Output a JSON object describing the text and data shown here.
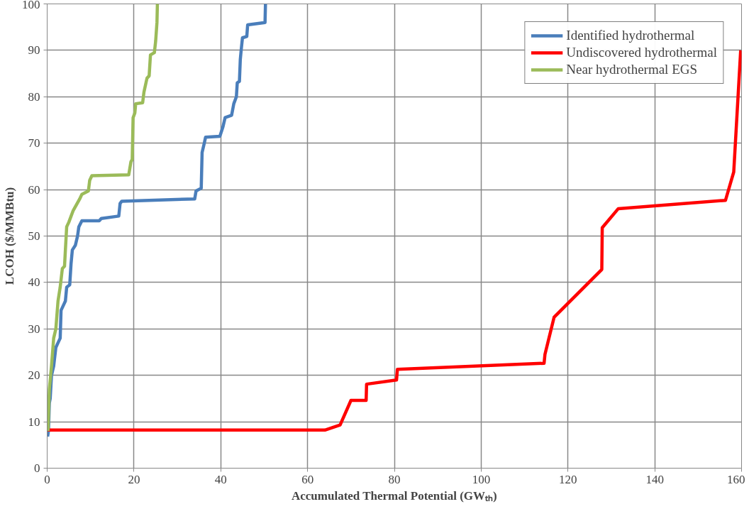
{
  "chart_data": {
    "type": "line",
    "xlabel": "Accumulated Thermal Potential (GWₜₕ)",
    "ylabel": "LCOH ($/MMBtu)",
    "xlim": [
      0,
      160
    ],
    "xticks": [
      0,
      20,
      40,
      60,
      80,
      100,
      120,
      140,
      160
    ],
    "ylim": [
      0,
      100
    ],
    "yticks": [
      0,
      10,
      20,
      30,
      40,
      50,
      60,
      70,
      80,
      90,
      100
    ],
    "grid": true,
    "legend": "top right",
    "marker": "none",
    "line_style": "solid",
    "series": [
      {
        "name": "Identified hydrothermal",
        "color": "#4a7ebb",
        "x": [
          0.1,
          0.3,
          0.5,
          0.7,
          1,
          1.5,
          2,
          2.5,
          3,
          3.2,
          3.7,
          4.2,
          4.5,
          5.2,
          5.5,
          5.8,
          6.5,
          7,
          7.3,
          8,
          12,
          12.5,
          16.5,
          16.8,
          17.2,
          34,
          34.3,
          35.5,
          35.7,
          36.2,
          36.5,
          39.8,
          40.5,
          41,
          42.5,
          43,
          43.6,
          43.8,
          44.3,
          44.5,
          44.7,
          45,
          46,
          46.2,
          50.2,
          50.3
        ],
        "values": [
          6.8,
          8,
          14,
          15,
          20,
          22,
          26,
          27,
          28,
          34,
          35,
          36,
          39,
          39.5,
          44,
          47,
          48,
          50,
          52,
          53.3,
          53.3,
          53.8,
          54.3,
          57,
          57.5,
          58,
          59.7,
          60.3,
          68,
          70,
          71.3,
          71.5,
          73.5,
          75.5,
          76,
          78.5,
          80,
          83,
          83.3,
          88,
          90,
          92.7,
          93,
          95.5,
          96,
          100
        ]
      },
      {
        "name": "Undiscovered hydrothermal",
        "color": "#ff0000",
        "x": [
          0,
          64,
          67.5,
          70,
          73.5,
          73.6,
          80.5,
          80.7,
          114.5,
          114.7,
          116.8,
          127.8,
          127.9,
          131.6,
          156.3,
          158.2,
          159.8
        ],
        "values": [
          8.2,
          8.2,
          9.3,
          14.6,
          14.6,
          18.1,
          19,
          21.3,
          22.6,
          24.5,
          32.5,
          42.8,
          51.8,
          55.9,
          57.7,
          63.8,
          90
        ]
      },
      {
        "name": "Near hydrothermal EGS",
        "color": "#9bbb59",
        "x": [
          0.2,
          0.5,
          1,
          1.5,
          2,
          2.5,
          3,
          3.5,
          4,
          4.2,
          4.5,
          5,
          6,
          7.5,
          8,
          9.5,
          9.8,
          10.3,
          18.8,
          19.3,
          19.6,
          19.8,
          20.2,
          20.4,
          22,
          22.3,
          23,
          23.5,
          23.8,
          24.7,
          25,
          25.3,
          25.4
        ],
        "values": [
          8,
          17,
          22,
          28,
          30,
          36,
          39,
          43,
          43.5,
          47,
          52,
          53,
          55.5,
          58,
          59,
          59.7,
          62,
          63,
          63.2,
          66,
          66.5,
          75.5,
          76.5,
          78.5,
          78.7,
          81,
          84,
          84.5,
          89,
          89.5,
          92,
          96,
          100
        ]
      }
    ]
  }
}
